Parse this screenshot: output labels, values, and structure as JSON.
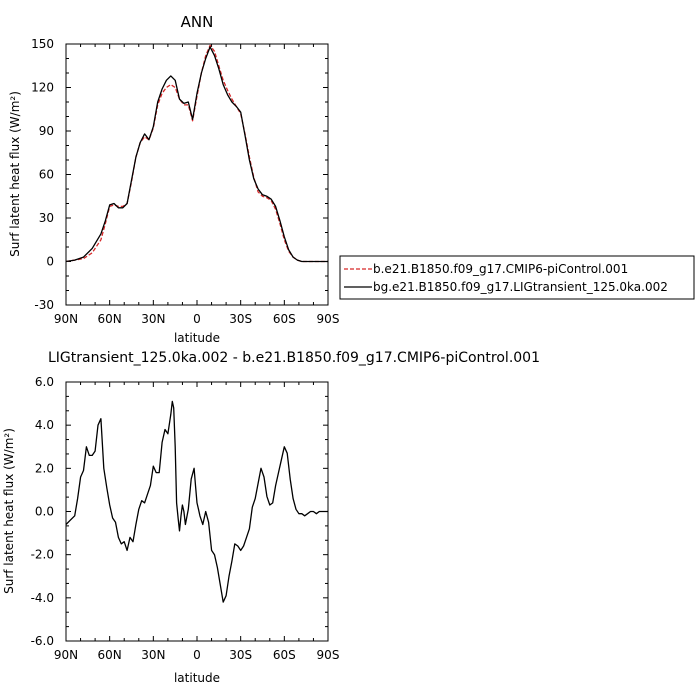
{
  "chart_data": [
    {
      "type": "line",
      "title": "ANN",
      "xlabel": "latitude",
      "ylabel": "Surf latent heat flux (W/m²)",
      "xlim": [
        90,
        -90
      ],
      "ylim": [
        -30,
        150
      ],
      "xticks": [
        90,
        60,
        30,
        0,
        -30,
        -60,
        -90
      ],
      "xtick_labels": [
        "90N",
        "60N",
        "30N",
        "0",
        "30S",
        "60S",
        "90S"
      ],
      "yticks": [
        -30,
        0,
        30,
        60,
        90,
        120,
        150
      ],
      "ytick_labels": [
        "-30",
        "0",
        "30",
        "60",
        "90",
        "120",
        "150"
      ],
      "legend": "right",
      "series": [
        {
          "name": "b.e21.B1850.f09_g17.CMIP6-piControl.001",
          "color": "#d62728",
          "style": "dashed",
          "x": [
            90,
            84,
            78,
            72,
            66,
            63,
            60,
            57,
            54,
            51,
            48,
            45,
            42,
            39,
            36,
            33,
            30,
            27,
            24,
            21,
            18,
            15,
            12,
            9,
            6,
            3,
            0,
            -3,
            -6,
            -9,
            -12,
            -15,
            -18,
            -21,
            -24,
            -27,
            -30,
            -33,
            -36,
            -39,
            -42,
            -45,
            -48,
            -51,
            -54,
            -57,
            -60,
            -63,
            -66,
            -69,
            -72,
            -75,
            -78,
            -81,
            -84,
            -87,
            -90
          ],
          "values": [
            0,
            1,
            2,
            6,
            15,
            26,
            38,
            39,
            38,
            38,
            40,
            55,
            72,
            82,
            86,
            84,
            92,
            108,
            116,
            120,
            122,
            120,
            112,
            108,
            108,
            97,
            114,
            130,
            142,
            149,
            145,
            135,
            125,
            118,
            112,
            107,
            102,
            88,
            72,
            58,
            48,
            45,
            44,
            42,
            36,
            26,
            15,
            7,
            3,
            1,
            0,
            0,
            0,
            0,
            0,
            0,
            0
          ]
        },
        {
          "name": "bg.e21.B1850.f09_g17.LIGtransient_125.0ka.002",
          "color": "#000000",
          "style": "solid",
          "x": [
            90,
            84,
            78,
            72,
            66,
            63,
            60,
            57,
            54,
            51,
            48,
            45,
            42,
            39,
            36,
            33,
            30,
            27,
            24,
            21,
            18,
            15,
            12,
            9,
            6,
            3,
            0,
            -3,
            -6,
            -9,
            -12,
            -15,
            -18,
            -21,
            -24,
            -27,
            -30,
            -33,
            -36,
            -39,
            -42,
            -45,
            -48,
            -51,
            -54,
            -57,
            -60,
            -63,
            -66,
            -69,
            -72,
            -75,
            -78,
            -81,
            -84,
            -87,
            -90
          ],
          "values": [
            0,
            1,
            3,
            9,
            19,
            28,
            39,
            40,
            37,
            37,
            40,
            56,
            72,
            82,
            88,
            84,
            93,
            110,
            119,
            125,
            128,
            125,
            112,
            109,
            110,
            98,
            116,
            130,
            140,
            148,
            142,
            133,
            122,
            115,
            110,
            107,
            103,
            87,
            70,
            57,
            50,
            46,
            45,
            43,
            38,
            28,
            17,
            8,
            3,
            1,
            0,
            0,
            0,
            0,
            0,
            0,
            0
          ]
        }
      ]
    },
    {
      "type": "line",
      "title": "LIGtransient_125.0ka.002 - b.e21.B1850.f09_g17.CMIP6-piControl.001",
      "xlabel": "latitude",
      "ylabel": "Surf latent heat flux (W/m²)",
      "xlim": [
        90,
        -90
      ],
      "ylim": [
        -6,
        6
      ],
      "xticks": [
        90,
        60,
        30,
        0,
        -30,
        -60,
        -90
      ],
      "xtick_labels": [
        "90N",
        "60N",
        "30N",
        "0",
        "30S",
        "60S",
        "90S"
      ],
      "yticks": [
        -6,
        -4,
        -2,
        0,
        2,
        4,
        6
      ],
      "ytick_labels": [
        "-6.0",
        "-4.0",
        "-2.0",
        "0.0",
        "2.0",
        "4.0",
        "6.0"
      ],
      "series": [
        {
          "color": "#000000",
          "style": "solid",
          "x": [
            90,
            87,
            84,
            82,
            80,
            78,
            76,
            74,
            72,
            70,
            68,
            66,
            64,
            62,
            60,
            58,
            56,
            54,
            52,
            50,
            48,
            46,
            44,
            42,
            40,
            38,
            36,
            34,
            32,
            30,
            28,
            26,
            24,
            22,
            20,
            18,
            17,
            16,
            15,
            14,
            13,
            12,
            11,
            10,
            9,
            8,
            6,
            4,
            2,
            1,
            0,
            -1,
            -2,
            -4,
            -6,
            -8,
            -10,
            -12,
            -14,
            -16,
            -18,
            -20,
            -22,
            -24,
            -26,
            -28,
            -30,
            -32,
            -34,
            -36,
            -38,
            -40,
            -42,
            -44,
            -46,
            -48,
            -50,
            -52,
            -54,
            -56,
            -58,
            -60,
            -62,
            -64,
            -66,
            -68,
            -70,
            -72,
            -74,
            -76,
            -78,
            -80,
            -82,
            -84,
            -86,
            -88,
            -90
          ],
          "values": [
            -0.6,
            -0.4,
            -0.2,
            0.6,
            1.6,
            1.9,
            3.0,
            2.6,
            2.6,
            2.8,
            4.0,
            4.3,
            2.0,
            1.1,
            0.3,
            -0.3,
            -0.5,
            -1.2,
            -1.5,
            -1.4,
            -1.8,
            -1.2,
            -1.4,
            -0.6,
            0.1,
            0.5,
            0.4,
            0.8,
            1.2,
            2.1,
            1.8,
            1.8,
            3.2,
            3.8,
            3.6,
            4.5,
            5.1,
            4.8,
            3.0,
            0.4,
            -0.3,
            -0.9,
            -0.2,
            0.3,
            0.0,
            -0.6,
            0.1,
            1.5,
            2.0,
            1.2,
            0.4,
            0.1,
            -0.2,
            -0.6,
            0.0,
            -0.5,
            -1.8,
            -2.0,
            -2.6,
            -3.4,
            -4.2,
            -3.9,
            -3.0,
            -2.3,
            -1.5,
            -1.6,
            -1.8,
            -1.6,
            -1.2,
            -0.8,
            0.2,
            0.6,
            1.3,
            2.0,
            1.6,
            0.7,
            0.3,
            0.4,
            1.2,
            1.8,
            2.4,
            3.0,
            2.7,
            1.5,
            0.6,
            0.1,
            -0.1,
            -0.1,
            -0.2,
            -0.1,
            0.0,
            0.0,
            -0.1,
            0.0,
            0.0,
            0.0,
            0.0
          ]
        }
      ]
    }
  ]
}
